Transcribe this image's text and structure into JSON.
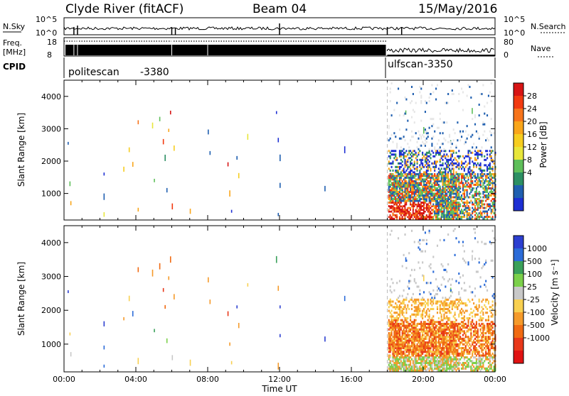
{
  "header": {
    "station": "Clyde River (fitACF)",
    "beam": "Beam 04",
    "date": "15/May/2016"
  },
  "top_panels": {
    "nsky_label": "N.Sky",
    "nsearch_label": "N.Search",
    "nsky_ticks": [
      "10^5",
      "10^0"
    ],
    "freq_label": "Freq.",
    "freq_unit": "[MHz]",
    "freq_ticks": [
      "18",
      "8"
    ],
    "nave_label": "Nave",
    "nave_ticks": [
      "80",
      "0"
    ],
    "cpid_label": "CPID",
    "cpid_modes": [
      {
        "name": "politescan",
        "id": "-3380",
        "start_hour": 0,
        "end_hour": 18
      },
      {
        "name": "ulfscan",
        "id": "-3350",
        "start_hour": 18,
        "end_hour": 24
      }
    ]
  },
  "chart_data": [
    {
      "type": "heatmap",
      "panel": "power",
      "ylabel": "Slant Range [km]",
      "xlabel": "",
      "xlim": [
        0,
        24
      ],
      "ylim": [
        180,
        4500
      ],
      "yticks": [
        1000,
        2000,
        3000,
        4000
      ],
      "colorbar": {
        "label": "Power [dB]",
        "ticks": [
          "28",
          "24",
          "20",
          "16",
          "12",
          "8",
          "4"
        ],
        "colors": [
          "#d71515",
          "#f23a10",
          "#f7741b",
          "#f9a51a",
          "#f6cd1f",
          "#e8e63a",
          "#5fbf5a",
          "#2c8f63",
          "#1f5fb0",
          "#1d2fd3"
        ]
      },
      "scatter_blobs": [
        {
          "t": 0.2,
          "r": 2550,
          "c": 8
        },
        {
          "t": 0.3,
          "r": 1300,
          "c": 6
        },
        {
          "t": 0.35,
          "r": 700,
          "c": 3
        },
        {
          "t": 2.2,
          "r": 1600,
          "c": 9
        },
        {
          "t": 2.2,
          "r": 900,
          "c": 8
        },
        {
          "t": 2.2,
          "r": 350,
          "c": 5
        },
        {
          "t": 3.3,
          "r": 1750,
          "c": 4
        },
        {
          "t": 3.6,
          "r": 2350,
          "c": 4
        },
        {
          "t": 3.8,
          "r": 1900,
          "c": 3
        },
        {
          "t": 4.1,
          "r": 3200,
          "c": 2
        },
        {
          "t": 4.1,
          "r": 500,
          "c": 3
        },
        {
          "t": 4.9,
          "r": 3100,
          "c": 5
        },
        {
          "t": 5.0,
          "r": 1400,
          "c": 6
        },
        {
          "t": 5.3,
          "r": 3300,
          "c": 6
        },
        {
          "t": 5.5,
          "r": 2600,
          "c": 1
        },
        {
          "t": 5.6,
          "r": 2100,
          "c": 7
        },
        {
          "t": 5.7,
          "r": 1100,
          "c": 8
        },
        {
          "t": 5.8,
          "r": 2950,
          "c": 3
        },
        {
          "t": 5.9,
          "r": 3500,
          "c": 0
        },
        {
          "t": 6.0,
          "r": 600,
          "c": 1
        },
        {
          "t": 6.1,
          "r": 2400,
          "c": 4
        },
        {
          "t": 7.0,
          "r": 450,
          "c": 3
        },
        {
          "t": 8.0,
          "r": 2900,
          "c": 8
        },
        {
          "t": 8.1,
          "r": 2250,
          "c": 8
        },
        {
          "t": 9.1,
          "r": 1900,
          "c": 0
        },
        {
          "t": 9.2,
          "r": 1000,
          "c": 3
        },
        {
          "t": 9.3,
          "r": 450,
          "c": 9
        },
        {
          "t": 9.6,
          "r": 2100,
          "c": 8
        },
        {
          "t": 9.7,
          "r": 1550,
          "c": 4
        },
        {
          "t": 10.2,
          "r": 2750,
          "c": 5
        },
        {
          "t": 11.8,
          "r": 3500,
          "c": 9
        },
        {
          "t": 11.9,
          "r": 2650,
          "c": 9
        },
        {
          "t": 12.0,
          "r": 2100,
          "c": 8
        },
        {
          "t": 12.0,
          "r": 1250,
          "c": 8
        },
        {
          "t": 11.9,
          "r": 350,
          "c": 8
        },
        {
          "t": 14.5,
          "r": 1150,
          "c": 8
        },
        {
          "t": 15.6,
          "r": 2350,
          "c": 9
        },
        {
          "t": 19.0,
          "r": 3500,
          "c": 6
        },
        {
          "t": 20.0,
          "r": 2950,
          "c": 6
        },
        {
          "t": 21.5,
          "r": 2600,
          "c": 7
        },
        {
          "t": 22.7,
          "r": 3550,
          "c": 6
        }
      ]
    },
    {
      "type": "heatmap",
      "panel": "velocity",
      "ylabel": "Slant Range [km]",
      "xlabel": "Time UT",
      "xlim": [
        0,
        24
      ],
      "ylim": [
        180,
        4500
      ],
      "yticks": [
        1000,
        2000,
        3000,
        4000
      ],
      "xticks": [
        "00:00",
        "04:00",
        "08:00",
        "12:00",
        "16:00",
        "20:00",
        "00:00"
      ],
      "colorbar": {
        "label": "Velocity [m s⁻¹]",
        "ticks": [
          "1000",
          "500",
          "100",
          "25",
          "-25",
          "-100",
          "-500",
          "-1000"
        ],
        "colors": [
          "#2c3fd0",
          "#2b6bd8",
          "#3aa05a",
          "#7bd04a",
          "#c8c8c8",
          "#f8d050",
          "#f59a2a",
          "#f06a12",
          "#e8381a",
          "#e01212"
        ]
      },
      "scatter_blobs": [
        {
          "t": 0.2,
          "r": 2550,
          "c": 0
        },
        {
          "t": 0.3,
          "r": 1300,
          "c": 5
        },
        {
          "t": 0.35,
          "r": 700,
          "c": 4
        },
        {
          "t": 2.2,
          "r": 1600,
          "c": 0
        },
        {
          "t": 2.2,
          "r": 900,
          "c": 1
        },
        {
          "t": 2.2,
          "r": 350,
          "c": 1
        },
        {
          "t": 3.3,
          "r": 1750,
          "c": 6
        },
        {
          "t": 3.6,
          "r": 2350,
          "c": 5
        },
        {
          "t": 3.8,
          "r": 1900,
          "c": 1
        },
        {
          "t": 4.1,
          "r": 3200,
          "c": 7
        },
        {
          "t": 4.1,
          "r": 500,
          "c": 5
        },
        {
          "t": 4.9,
          "r": 3100,
          "c": 6
        },
        {
          "t": 5.0,
          "r": 1400,
          "c": 2
        },
        {
          "t": 5.3,
          "r": 3300,
          "c": 7
        },
        {
          "t": 5.5,
          "r": 2600,
          "c": 8
        },
        {
          "t": 5.6,
          "r": 2100,
          "c": 7
        },
        {
          "t": 5.7,
          "r": 1100,
          "c": 3
        },
        {
          "t": 5.8,
          "r": 2950,
          "c": 6
        },
        {
          "t": 5.9,
          "r": 3500,
          "c": 7
        },
        {
          "t": 6.0,
          "r": 600,
          "c": 4
        },
        {
          "t": 6.1,
          "r": 2400,
          "c": 6
        },
        {
          "t": 7.0,
          "r": 450,
          "c": 5
        },
        {
          "t": 8.0,
          "r": 2900,
          "c": 6
        },
        {
          "t": 8.1,
          "r": 2250,
          "c": 6
        },
        {
          "t": 9.1,
          "r": 1900,
          "c": 8
        },
        {
          "t": 9.2,
          "r": 1000,
          "c": 6
        },
        {
          "t": 9.3,
          "r": 450,
          "c": 5
        },
        {
          "t": 9.6,
          "r": 2100,
          "c": 0
        },
        {
          "t": 9.7,
          "r": 1550,
          "c": 6
        },
        {
          "t": 10.2,
          "r": 2750,
          "c": 5
        },
        {
          "t": 11.8,
          "r": 3500,
          "c": 2
        },
        {
          "t": 11.9,
          "r": 2650,
          "c": 6
        },
        {
          "t": 12.0,
          "r": 2100,
          "c": 0
        },
        {
          "t": 12.0,
          "r": 1250,
          "c": 0
        },
        {
          "t": 11.9,
          "r": 350,
          "c": 6
        },
        {
          "t": 14.5,
          "r": 1150,
          "c": 0
        },
        {
          "t": 15.6,
          "r": 2350,
          "c": 1
        },
        {
          "t": 19.0,
          "r": 3500,
          "c": 1
        },
        {
          "t": 20.0,
          "r": 2950,
          "c": 5
        },
        {
          "t": 21.5,
          "r": 2600,
          "c": 3
        },
        {
          "t": 22.7,
          "r": 3550,
          "c": 4
        }
      ]
    }
  ]
}
